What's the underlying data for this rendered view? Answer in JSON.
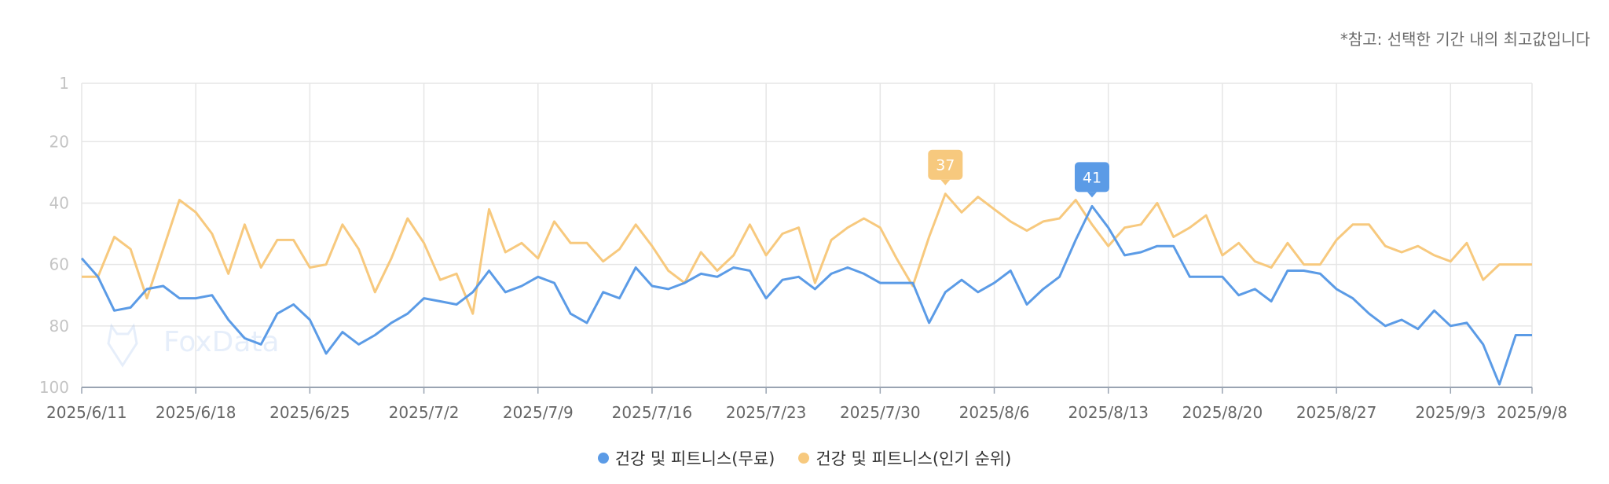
{
  "note": "*참고: 선택한 기간 내의 최고값입니다",
  "watermark": "FoxData",
  "chart_data": {
    "type": "line",
    "y_axis": {
      "reversed": true,
      "min": 1,
      "max": 100,
      "ticks": [
        1,
        20,
        40,
        60,
        80,
        100
      ]
    },
    "x_tick_labels": [
      "2025/6/11",
      "2025/6/18",
      "2025/6/25",
      "2025/7/2",
      "2025/7/9",
      "2025/7/16",
      "2025/7/23",
      "2025/7/30",
      "2025/8/6",
      "2025/8/13",
      "2025/8/20",
      "2025/8/27",
      "2025/9/3",
      "2025/9/8"
    ],
    "x_tick_index": [
      0,
      7,
      14,
      21,
      28,
      35,
      42,
      49,
      56,
      63,
      70,
      77,
      84,
      89
    ],
    "grid": true,
    "legend_position": "bottom-center",
    "series": [
      {
        "name": "건강 및 피트니스(무료)",
        "color": "#5b9be6",
        "peak_label": "41",
        "peak_index": 62,
        "values": [
          58,
          64,
          75,
          74,
          68,
          67,
          71,
          71,
          70,
          78,
          84,
          86,
          76,
          73,
          78,
          89,
          82,
          86,
          83,
          79,
          76,
          71,
          72,
          73,
          69,
          62,
          69,
          67,
          64,
          66,
          76,
          79,
          69,
          71,
          61,
          67,
          68,
          66,
          63,
          64,
          61,
          62,
          71,
          65,
          64,
          68,
          63,
          61,
          63,
          66,
          66,
          66,
          79,
          69,
          65,
          69,
          66,
          62,
          73,
          68,
          64,
          52,
          41,
          48,
          57,
          56,
          54,
          54,
          64,
          64,
          64,
          70,
          68,
          72,
          62,
          62,
          63,
          68,
          71,
          76,
          80,
          78,
          81,
          75,
          80,
          79,
          86,
          99,
          83,
          83
        ]
      },
      {
        "name": "건강 및 피트니스(인기 순위)",
        "color": "#f7c97e",
        "peak_label": "37",
        "peak_index": 53,
        "values": [
          64,
          64,
          51,
          55,
          71,
          55,
          39,
          43,
          50,
          63,
          47,
          61,
          52,
          52,
          61,
          60,
          47,
          55,
          69,
          58,
          45,
          53,
          65,
          63,
          76,
          42,
          56,
          53,
          58,
          46,
          53,
          53,
          59,
          55,
          47,
          54,
          62,
          66,
          56,
          62,
          57,
          47,
          57,
          50,
          48,
          66,
          52,
          48,
          45,
          48,
          58,
          67,
          51,
          37,
          43,
          38,
          42,
          46,
          49,
          46,
          45,
          39,
          47,
          54,
          48,
          47,
          40,
          51,
          48,
          44,
          57,
          53,
          59,
          61,
          53,
          60,
          60,
          52,
          47,
          47,
          54,
          56,
          54,
          57,
          59,
          53,
          65,
          60,
          60,
          60
        ]
      }
    ]
  }
}
